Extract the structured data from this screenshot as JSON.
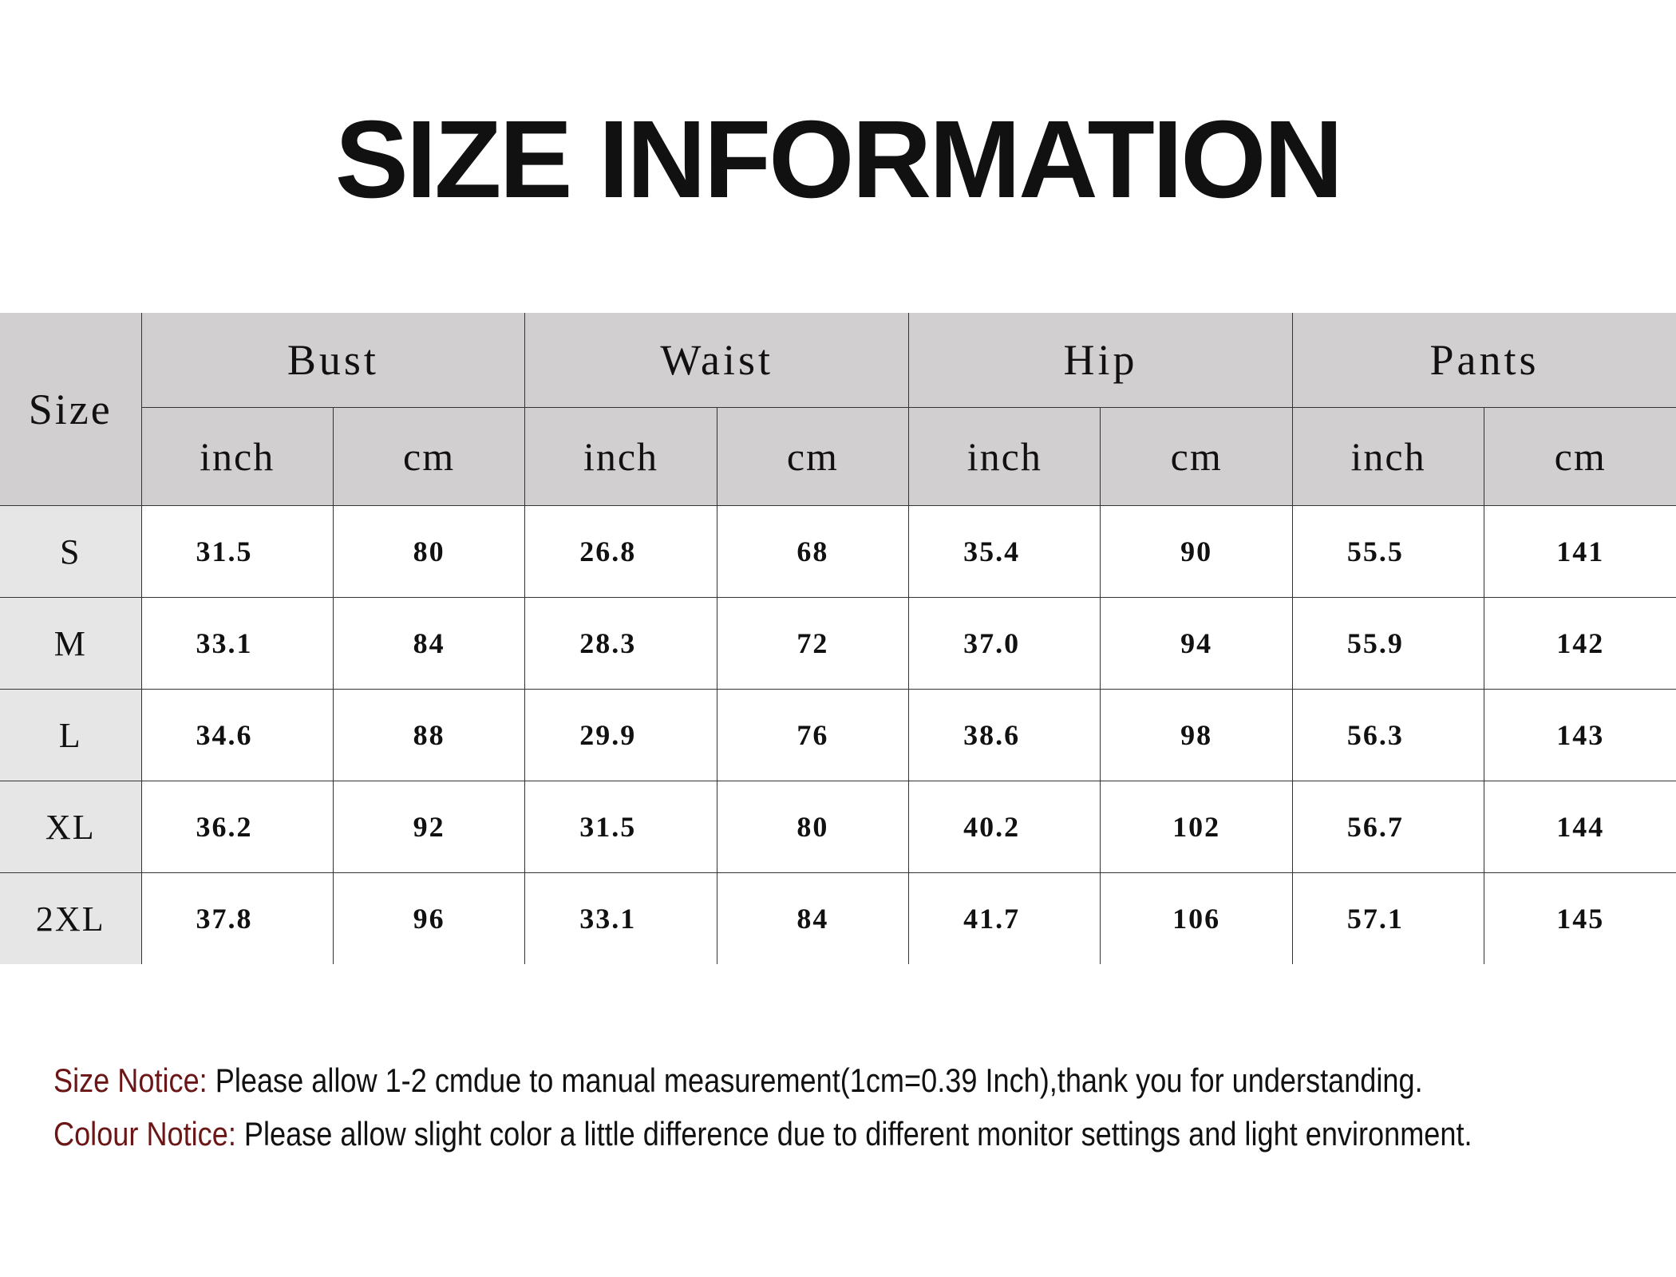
{
  "title": "SIZE INFORMATION",
  "table": {
    "size_header": "Size",
    "groups": [
      "Bust",
      "Waist",
      "Hip",
      "Pants"
    ],
    "units": [
      "inch",
      "cm"
    ],
    "rows": [
      {
        "size": "S",
        "values": [
          "31.5",
          "80",
          "26.8",
          "68",
          "35.4",
          "90",
          "55.5",
          "141"
        ]
      },
      {
        "size": "M",
        "values": [
          "33.1",
          "84",
          "28.3",
          "72",
          "37.0",
          "94",
          "55.9",
          "142"
        ]
      },
      {
        "size": "L",
        "values": [
          "34.6",
          "88",
          "29.9",
          "76",
          "38.6",
          "98",
          "56.3",
          "143"
        ]
      },
      {
        "size": "XL",
        "values": [
          "36.2",
          "92",
          "31.5",
          "80",
          "40.2",
          "102",
          "56.7",
          "144"
        ]
      },
      {
        "size": "2XL",
        "values": [
          "37.8",
          "96",
          "33.1",
          "84",
          "41.7",
          "106",
          "57.1",
          "145"
        ]
      }
    ]
  },
  "notices": [
    {
      "label": "Size Notice:",
      "text": " Please allow 1-2 cmdue to manual measurement(1cm=0.39 Inch),thank you for understanding."
    },
    {
      "label": "Colour Notice:",
      "text": " Please allow slight color a little difference due to different monitor settings and light environment."
    }
  ],
  "colors": {
    "header_bg": "#d1cfd0",
    "size_col_bg": "#e6e6e6",
    "notice_label": "#6b1616"
  }
}
